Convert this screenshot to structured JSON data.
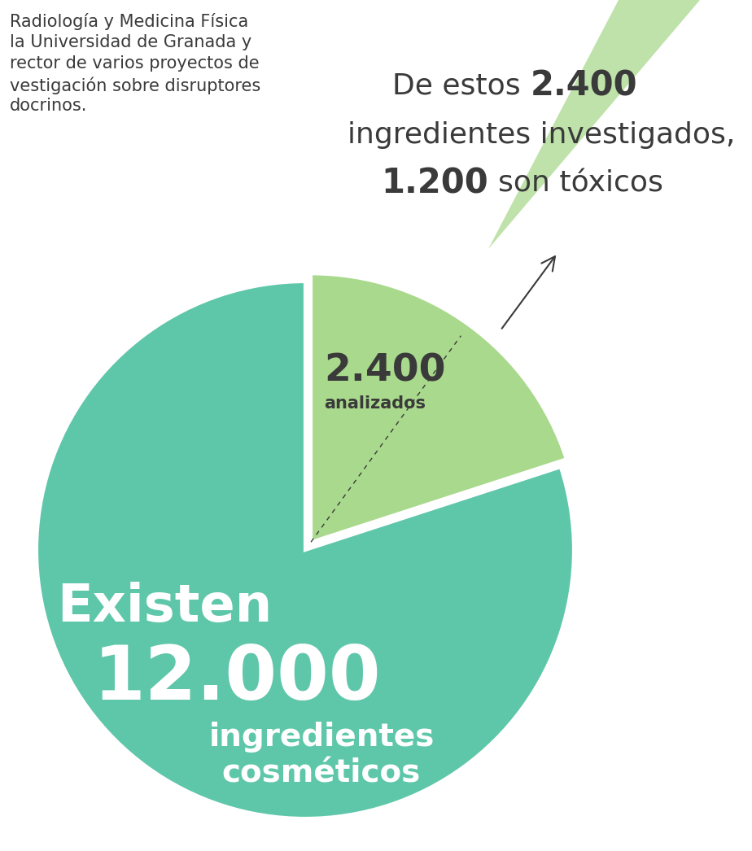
{
  "chart_data": {
    "type": "pie",
    "header_lines": [
      "Radiología y Medicina Física",
      "la Universidad de Granada y",
      "rector de varios proyectos de",
      "vestigación sobre disruptores",
      "docrinos."
    ],
    "total": {
      "value": 12000,
      "label": "12.000",
      "prefix": "Existen",
      "suffix": [
        "ingredientes",
        "cosméticos"
      ]
    },
    "categories": [
      "analizados"
    ],
    "values": [
      2400
    ],
    "value_labels": [
      "2.400"
    ],
    "colors": [
      "#a9d98c"
    ],
    "color": "#5fc7a9",
    "callout": {
      "analyzed": {
        "value": 2400,
        "label": "2.400"
      },
      "toxic": {
        "value": 1200,
        "label": "1.200"
      },
      "texts": [
        "De estos",
        "ingredientes investigados,",
        "son tóxicos"
      ]
    }
  }
}
